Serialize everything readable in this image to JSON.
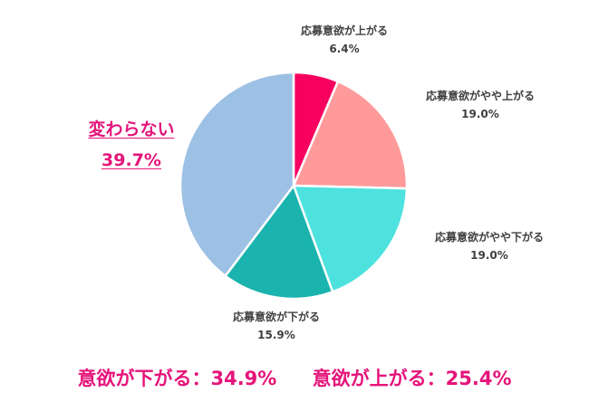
{
  "chart_data": {
    "type": "pie",
    "title": "",
    "start_angle": "top (12 o'clock), clockwise",
    "slices": [
      {
        "label": "応募意欲が上がる",
        "value": 6.4,
        "display": "6.4%",
        "color": "#F7005F"
      },
      {
        "label": "応募意欲がやや上がる",
        "value": 19.0,
        "display": "19.0%",
        "color": "#FF9A9A"
      },
      {
        "label": "応募意欲がやや下がる",
        "value": 19.0,
        "display": "19.0%",
        "color": "#4EE2DF"
      },
      {
        "label": "応募意欲が下がる",
        "value": 15.9,
        "display": "15.9%",
        "color": "#1BB3AE"
      },
      {
        "label": "変わらない",
        "value": 39.7,
        "display": "39.7%",
        "color": "#9DC1E4"
      }
    ],
    "summary": [
      {
        "label": "意欲が下がる：34.9%",
        "value": 34.9
      },
      {
        "label": "意欲が上がる：25.4%",
        "value": 25.4
      }
    ]
  },
  "labels": {
    "s0": {
      "name": "応募意欲が上がる",
      "pct": "6.4%"
    },
    "s1": {
      "name": "応募意欲がやや上がる",
      "pct": "19.0%"
    },
    "s2": {
      "name": "応募意欲がやや下がる",
      "pct": "19.0%"
    },
    "s3": {
      "name": "応募意欲が下がる",
      "pct": "15.9%"
    },
    "s4": {
      "name": "変わらない",
      "pct": "39.7%"
    }
  },
  "summary": {
    "down": "意欲が下がる：34.9%",
    "up": "意欲が上がる：25.4%"
  }
}
